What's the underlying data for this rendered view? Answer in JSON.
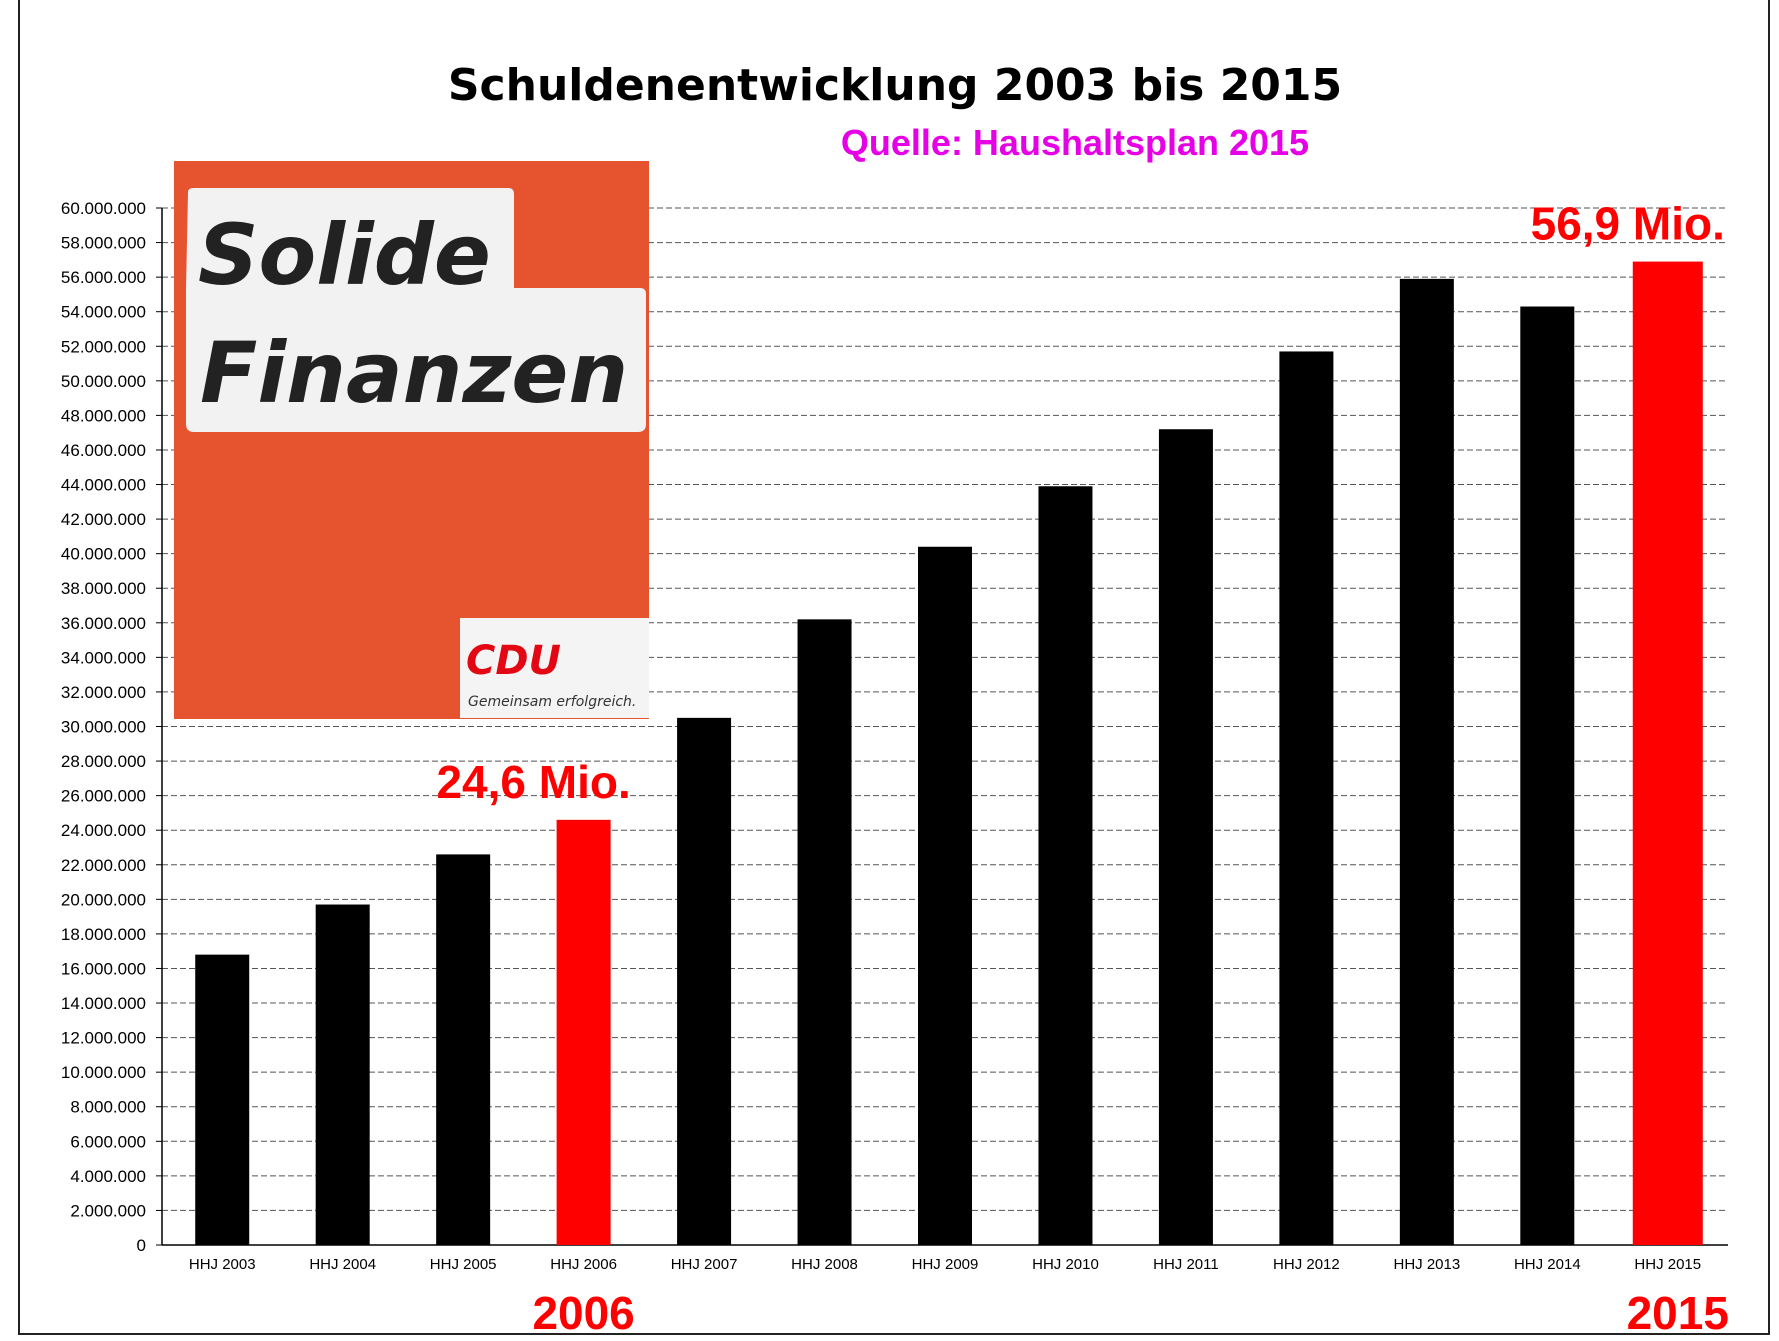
{
  "chart_data": {
    "type": "bar",
    "title": "Schuldenentwicklung 2003 bis 2015",
    "subtitle": "Quelle: Haushaltsplan 2015",
    "categories": [
      "HHJ 2003",
      "HHJ 2004",
      "HHJ 2005",
      "HHJ 2006",
      "HHJ 2007",
      "HHJ 2008",
      "HHJ 2009",
      "HHJ 2010",
      "HHJ 2011",
      "HHJ 2012",
      "HHJ 2013",
      "HHJ 2014",
      "HHJ 2015"
    ],
    "values": [
      16800000,
      19700000,
      22600000,
      24600000,
      30500000,
      36200000,
      40400000,
      43900000,
      47200000,
      51700000,
      55900000,
      54300000,
      56900000
    ],
    "highlight": [
      "HHJ 2006",
      "HHJ 2015"
    ],
    "ylim": [
      0,
      60000000
    ],
    "yticks": [
      "0",
      "2.000.000",
      "4.000.000",
      "6.000.000",
      "8.000.000",
      "10.000.000",
      "12.000.000",
      "14.000.000",
      "16.000.000",
      "18.000.000",
      "20.000.000",
      "22.000.000",
      "24.000.000",
      "26.000.000",
      "28.000.000",
      "30.000.000",
      "32.000.000",
      "34.000.000",
      "36.000.000",
      "38.000.000",
      "40.000.000",
      "42.000.000",
      "44.000.000",
      "46.000.000",
      "48.000.000",
      "50.000.000",
      "52.000.000",
      "54.000.000",
      "56.000.000",
      "58.000.000",
      "60.000.000"
    ],
    "grid": true,
    "colors": {
      "bar": "#000000",
      "highlight": "#ff0000",
      "subtitle": "#e600e6"
    },
    "annotations": [
      {
        "category": "HHJ 2006",
        "label": "24,6 Mio.",
        "year": "2006"
      },
      {
        "category": "HHJ 2015",
        "label": "56,9 Mio.",
        "year": "2015"
      }
    ]
  },
  "poster": {
    "line1": "Solide",
    "line2": "Finanzen",
    "logo": "CDU",
    "slogan": "Gemeinsam erfolgreich.",
    "colors": {
      "background": "#e5532f",
      "panel": "#f2f2f2",
      "logo": "#e30613"
    }
  }
}
